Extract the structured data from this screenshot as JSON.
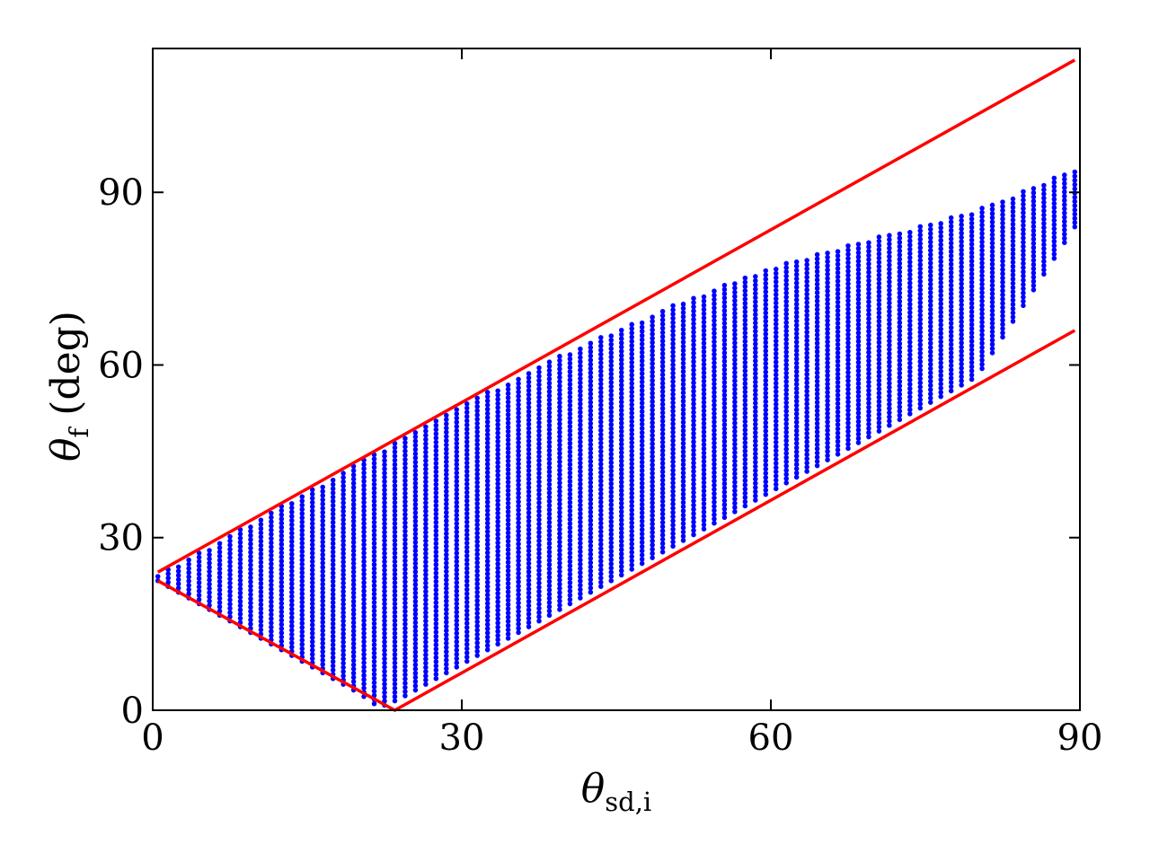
{
  "chart_data": {
    "type": "scatter",
    "title": "",
    "xlabel": {
      "symbol": "θ",
      "subscript": "sd,i"
    },
    "ylabel": {
      "symbol": "θ",
      "subscript": "f",
      "suffix": " (deg)"
    },
    "xlim": [
      0,
      90
    ],
    "ylim": [
      0,
      115
    ],
    "xticks": [
      0,
      30,
      60,
      90
    ],
    "yticks": [
      0,
      30,
      60,
      90
    ],
    "xtick_labels": [
      "0",
      "30",
      "60",
      "90"
    ],
    "ytick_labels": [
      "0",
      "30",
      "60",
      "90"
    ],
    "grid": false,
    "legend": "none",
    "series": [
      {
        "kind": "scatter-band",
        "color": "#0000ff",
        "description_of_extent": "vertical columns of points, one per x",
        "x_start": 0.5,
        "x_end": 89.5,
        "x_step": 1,
        "columns": [
          {
            "x": 0.5,
            "y_min": 22.5,
            "y_max": 23.5
          },
          {
            "x": 10,
            "y_min": 13,
            "y_max": 33
          },
          {
            "x": 20,
            "y_min": 3,
            "y_max": 43
          },
          {
            "x": 22,
            "y_min": 0.5,
            "y_max": 45
          },
          {
            "x": 24,
            "y_min": 2,
            "y_max": 47
          },
          {
            "x": 30,
            "y_min": 8,
            "y_max": 53
          },
          {
            "x": 40,
            "y_min": 18,
            "y_max": 62
          },
          {
            "x": 50,
            "y_min": 28,
            "y_max": 70
          },
          {
            "x": 60,
            "y_min": 38,
            "y_max": 77
          },
          {
            "x": 70,
            "y_min": 48,
            "y_max": 82
          },
          {
            "x": 80,
            "y_min": 58,
            "y_max": 87
          },
          {
            "x": 89.5,
            "y_min": 84,
            "y_max": 94
          }
        ]
      },
      {
        "kind": "line",
        "color": "#ff0000",
        "points": [
          [
            0.5,
            24
          ],
          [
            89.5,
            113
          ]
        ]
      },
      {
        "kind": "line",
        "color": "#ff0000",
        "points": [
          [
            0.5,
            22.5
          ],
          [
            23.5,
            0
          ],
          [
            89.5,
            66
          ]
        ]
      }
    ]
  }
}
